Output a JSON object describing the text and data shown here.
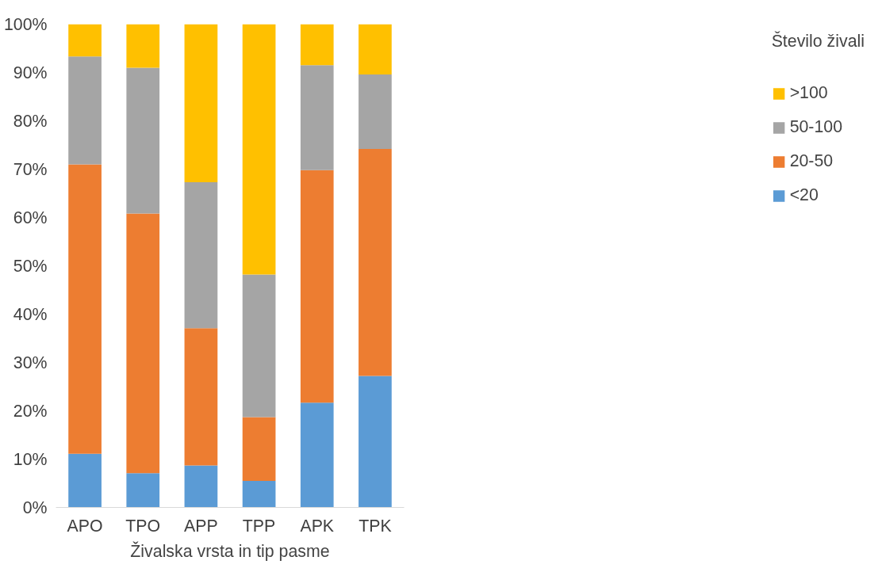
{
  "chart_data": {
    "type": "bar",
    "stacked": true,
    "xlabel": "Živalska vrsta in tip pasme",
    "legend_title": "Število živali",
    "legend": "right",
    "grid": false,
    "categories": [
      "APO",
      "TPO",
      "APP",
      "TPP",
      "APK",
      "TPK"
    ],
    "ylim": [
      0,
      100
    ],
    "yticks": [
      {
        "value": 0,
        "label": "0%"
      },
      {
        "value": 10,
        "label": "10%"
      },
      {
        "value": 20,
        "label": "20%"
      },
      {
        "value": 30,
        "label": "30%"
      },
      {
        "value": 40,
        "label": "40%"
      },
      {
        "value": 50,
        "label": "50%"
      },
      {
        "value": 60,
        "label": "60%"
      },
      {
        "value": 70,
        "label": "70%"
      },
      {
        "value": 80,
        "label": "80%"
      },
      {
        "value": 90,
        "label": "90%"
      },
      {
        "value": 100,
        "label": "100%"
      }
    ],
    "series": [
      {
        "name": "<20",
        "color": "#5b9bd5",
        "values": [
          11.1,
          7.1,
          8.7,
          5.5,
          21.7,
          27.2
        ]
      },
      {
        "name": "20-50",
        "color": "#ed7d31",
        "values": [
          59.9,
          53.7,
          28.4,
          13.2,
          48.1,
          47.0
        ]
      },
      {
        "name": "50-100",
        "color": "#a5a5a5",
        "values": [
          22.3,
          30.2,
          30.2,
          29.5,
          21.7,
          15.4
        ]
      },
      {
        "name": ">100",
        "color": "#ffc000",
        "values": [
          6.7,
          9.0,
          32.7,
          51.8,
          8.5,
          10.4
        ]
      }
    ]
  }
}
